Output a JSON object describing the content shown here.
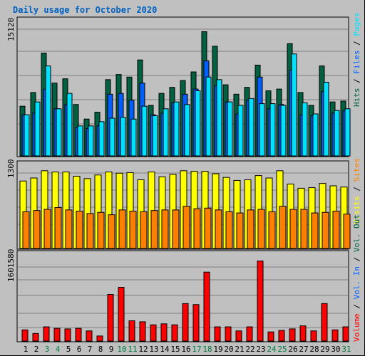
{
  "title": "Daily usage for October 2020",
  "colors": {
    "hits": "#006040",
    "files": "#0060ff",
    "pages": "#00e0ff",
    "visits": "#ffff00",
    "sites": "#ff8000",
    "vol_in": "#ff0000",
    "vol": "#ff0000",
    "vol_out": "#ff0000",
    "day_normal": "#000000",
    "day_weekend": "#008040",
    "label_blue": "#0060c0"
  },
  "chart_data": [
    {
      "type": "bar",
      "title": "",
      "ymax_label": "15120",
      "ylim": [
        0,
        15120
      ],
      "legend": [
        "Hits",
        "/",
        "Files",
        "/",
        "Pages"
      ],
      "categories": [
        "1",
        "2",
        "3",
        "4",
        "5",
        "6",
        "7",
        "8",
        "9",
        "10",
        "11",
        "12",
        "13",
        "14",
        "15",
        "16",
        "17",
        "18",
        "19",
        "20",
        "21",
        "22",
        "23",
        "24",
        "25",
        "26",
        "27",
        "28",
        "29",
        "30",
        "31"
      ],
      "series": [
        {
          "name": "Hits",
          "values": [
            5800,
            7400,
            12000,
            8500,
            9000,
            6000,
            4300,
            5100,
            8900,
            9500,
            9200,
            11200,
            5900,
            7300,
            8000,
            8800,
            9800,
            14500,
            12800,
            8300,
            7200,
            8000,
            10600,
            7600,
            7800,
            13100,
            7400,
            5900,
            10500,
            6300,
            6400
          ]
        },
        {
          "name": "Files",
          "values": [
            4800,
            5000,
            7800,
            5500,
            6000,
            3300,
            3200,
            3500,
            7200,
            7300,
            6500,
            8500,
            4800,
            5000,
            6200,
            7200,
            7800,
            11100,
            8200,
            6300,
            4900,
            6500,
            9200,
            5500,
            6000,
            10000,
            4800,
            4700,
            7500,
            5000,
            5300
          ]
        },
        {
          "name": "Pages",
          "values": [
            4800,
            6300,
            10500,
            5500,
            7300,
            3500,
            3500,
            4000,
            4400,
            4500,
            4300,
            5800,
            4700,
            5500,
            6300,
            6000,
            7600,
            9200,
            8900,
            6300,
            5900,
            6700,
            6100,
            6100,
            5900,
            11900,
            6200,
            4900,
            8600,
            5300,
            5500
          ]
        }
      ]
    },
    {
      "type": "bar",
      "title": "",
      "ymax_label": "1300",
      "ylim": [
        0,
        1300
      ],
      "legend": [
        "Visits",
        "/",
        "Sites"
      ],
      "categories": [
        "1",
        "2",
        "3",
        "4",
        "5",
        "6",
        "7",
        "8",
        "9",
        "10",
        "11",
        "12",
        "13",
        "14",
        "15",
        "16",
        "17",
        "18",
        "19",
        "20",
        "21",
        "22",
        "23",
        "24",
        "25",
        "26",
        "27",
        "28",
        "29",
        "30",
        "31"
      ],
      "series": [
        {
          "name": "Visits",
          "values": [
            1120,
            1170,
            1290,
            1270,
            1270,
            1200,
            1160,
            1220,
            1270,
            1250,
            1260,
            1140,
            1270,
            1190,
            1230,
            1290,
            1280,
            1280,
            1240,
            1180,
            1130,
            1140,
            1210,
            1170,
            1290,
            1070,
            1000,
            1010,
            1080,
            1040,
            1020
          ]
        },
        {
          "name": "Sites",
          "values": [
            610,
            630,
            650,
            680,
            640,
            620,
            580,
            600,
            560,
            640,
            620,
            610,
            630,
            640,
            640,
            700,
            660,
            670,
            640,
            610,
            590,
            640,
            650,
            610,
            700,
            650,
            650,
            590,
            600,
            620,
            570
          ]
        }
      ]
    },
    {
      "type": "bar",
      "title": "",
      "ymax_label": "1601580",
      "ylim": [
        0,
        1601580
      ],
      "legend": [
        "Volume",
        "/",
        "Vol. In",
        "/",
        "Vol. Out"
      ],
      "categories": [
        "1",
        "2",
        "3",
        "4",
        "5",
        "6",
        "7",
        "8",
        "9",
        "10",
        "11",
        "12",
        "13",
        "14",
        "15",
        "16",
        "17",
        "18",
        "19",
        "20",
        "21",
        "22",
        "23",
        "24",
        "25",
        "26",
        "27",
        "28",
        "29",
        "30",
        "31"
      ],
      "series": [
        {
          "name": "Volume",
          "values": [
            220000,
            150000,
            280000,
            250000,
            240000,
            250000,
            200000,
            100000,
            920000,
            1060000,
            400000,
            380000,
            320000,
            340000,
            320000,
            740000,
            720000,
            1360000,
            280000,
            280000,
            200000,
            280000,
            1580000,
            180000,
            210000,
            240000,
            300000,
            200000,
            740000,
            220000,
            280000
          ]
        }
      ]
    }
  ],
  "right_labels": {
    "top": [
      "Hits",
      "/",
      "Files",
      "/",
      "Pages"
    ],
    "mid": [
      "Visits",
      "/",
      "Sites"
    ],
    "bottom": [
      "Volume",
      "/",
      "Vol. In",
      "/",
      "Vol. Out"
    ]
  },
  "weekend_days": [
    "3",
    "4",
    "10",
    "11",
    "17",
    "18",
    "24",
    "25",
    "31"
  ]
}
